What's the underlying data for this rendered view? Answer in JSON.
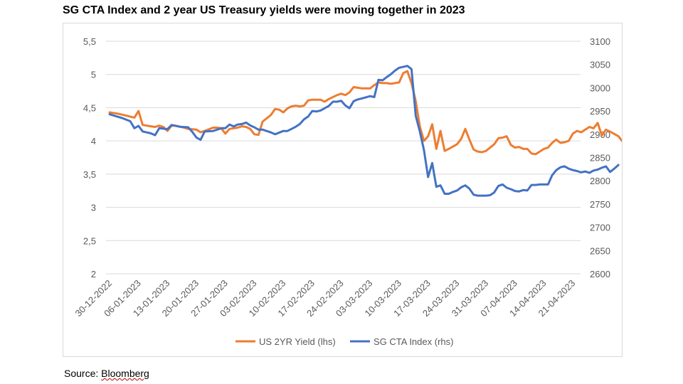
{
  "title": "SG CTA Index and 2 year US Treasury yields were moving together in 2023",
  "source": {
    "prefix": "Source: ",
    "name": "Bloomberg"
  },
  "chart_data": {
    "type": "line",
    "title": "SG CTA Index and 2 year US Treasury yields were moving together in 2023",
    "xlabel": "",
    "ylabel": "",
    "x_tick_labels": [
      "30-12-2022",
      "06-01-2023",
      "13-01-2023",
      "20-01-2023",
      "27-01-2023",
      "03-02-2023",
      "10-02-2023",
      "17-02-2023",
      "24-02-2023",
      "03-03-2023",
      "10-03-2023",
      "17-03-2023",
      "24-03-2023",
      "31-03-2023",
      "07-04-2023",
      "14-04-2023",
      "21-04-2023"
    ],
    "x_range_days": [
      0,
      119
    ],
    "y_left": {
      "ticks": [
        "2",
        "2,5",
        "3",
        "3,5",
        "4",
        "4,5",
        "5",
        "5,5"
      ],
      "range": [
        2,
        5.5
      ]
    },
    "y_right": {
      "ticks": [
        "2600",
        "2650",
        "2700",
        "2750",
        "2800",
        "2850",
        "2900",
        "2950",
        "3000",
        "3050",
        "3100"
      ],
      "range": [
        2600,
        3100
      ]
    },
    "grid": "horizontal",
    "legend_position": "bottom",
    "series": [
      {
        "name": "US 2YR Yield (lhs)",
        "axis": "left",
        "color": "#ed7d31",
        "points": [
          [
            0,
            4.43
          ],
          [
            2,
            4.41
          ],
          [
            4,
            4.38
          ],
          [
            6,
            4.35
          ],
          [
            7,
            4.45
          ],
          [
            8,
            4.24
          ],
          [
            10,
            4.22
          ],
          [
            11,
            4.21
          ],
          [
            12,
            4.23
          ],
          [
            13,
            4.21
          ],
          [
            14,
            4.15
          ],
          [
            15,
            4.23
          ],
          [
            16,
            4.23
          ],
          [
            18,
            4.2
          ],
          [
            19,
            4.18
          ],
          [
            21,
            4.17
          ],
          [
            22,
            4.13
          ],
          [
            23,
            4.15
          ],
          [
            25,
            4.2
          ],
          [
            26,
            4.2
          ],
          [
            27,
            4.19
          ],
          [
            28,
            4.11
          ],
          [
            29,
            4.18
          ],
          [
            31,
            4.2
          ],
          [
            32,
            4.22
          ],
          [
            33,
            4.21
          ],
          [
            34,
            4.18
          ],
          [
            35,
            4.1
          ],
          [
            36,
            4.09
          ],
          [
            37,
            4.29
          ],
          [
            39,
            4.39
          ],
          [
            40,
            4.48
          ],
          [
            41,
            4.47
          ],
          [
            42,
            4.43
          ],
          [
            43,
            4.49
          ],
          [
            44,
            4.52
          ],
          [
            45,
            4.53
          ],
          [
            46,
            4.52
          ],
          [
            47,
            4.53
          ],
          [
            48,
            4.61
          ],
          [
            49,
            4.62
          ],
          [
            51,
            4.62
          ],
          [
            52,
            4.59
          ],
          [
            53,
            4.63
          ],
          [
            55,
            4.69
          ],
          [
            56,
            4.71
          ],
          [
            57,
            4.69
          ],
          [
            58,
            4.73
          ],
          [
            59,
            4.81
          ],
          [
            60,
            4.8
          ],
          [
            61,
            4.79
          ],
          [
            62,
            4.79
          ],
          [
            63,
            4.79
          ],
          [
            64,
            4.84
          ],
          [
            65,
            4.88
          ],
          [
            66,
            4.87
          ],
          [
            67,
            4.87
          ],
          [
            68,
            4.86
          ],
          [
            69,
            4.87
          ],
          [
            70,
            4.88
          ],
          [
            71,
            5.02
          ],
          [
            72,
            5.05
          ],
          [
            73,
            4.87
          ],
          [
            74,
            4.6
          ],
          [
            75,
            4.22
          ],
          [
            76,
            4.0
          ],
          [
            77,
            4.07
          ],
          [
            78,
            4.25
          ],
          [
            79,
            3.88
          ],
          [
            80,
            4.15
          ],
          [
            81,
            3.85
          ],
          [
            82,
            3.88
          ],
          [
            84,
            3.95
          ],
          [
            85,
            4.03
          ],
          [
            86,
            4.18
          ],
          [
            87,
            4.02
          ],
          [
            88,
            3.87
          ],
          [
            89,
            3.84
          ],
          [
            90,
            3.83
          ],
          [
            91,
            3.85
          ],
          [
            93,
            3.95
          ],
          [
            94,
            4.04
          ],
          [
            95,
            4.05
          ],
          [
            96,
            4.07
          ],
          [
            97,
            3.94
          ],
          [
            98,
            3.9
          ],
          [
            99,
            3.91
          ],
          [
            100,
            3.88
          ],
          [
            101,
            3.88
          ],
          [
            102,
            3.81
          ],
          [
            103,
            3.8
          ],
          [
            104,
            3.84
          ],
          [
            105,
            3.88
          ],
          [
            106,
            3.9
          ],
          [
            107,
            3.97
          ],
          [
            108,
            4.02
          ],
          [
            109,
            3.97
          ],
          [
            110,
            3.98
          ],
          [
            111,
            4.0
          ],
          [
            112,
            4.11
          ],
          [
            113,
            4.15
          ],
          [
            114,
            4.13
          ],
          [
            115,
            4.17
          ],
          [
            116,
            4.21
          ],
          [
            117,
            4.19
          ],
          [
            118,
            4.27
          ],
          [
            119,
            4.08
          ],
          [
            120,
            4.17
          ],
          [
            121,
            4.14
          ],
          [
            123,
            4.07
          ],
          [
            124,
            3.99
          ],
          [
            125,
            3.94
          ],
          [
            126,
            3.97
          ],
          [
            127,
            4.05
          ]
        ]
      },
      {
        "name": "SG CTA Index (rhs)",
        "axis": "right",
        "color": "#4472c4",
        "points": [
          [
            0,
            2943
          ],
          [
            3,
            2935
          ],
          [
            5,
            2928
          ],
          [
            6,
            2913
          ],
          [
            7,
            2918
          ],
          [
            8,
            2906
          ],
          [
            9,
            2904
          ],
          [
            10,
            2902
          ],
          [
            11,
            2898
          ],
          [
            12,
            2913
          ],
          [
            14,
            2911
          ],
          [
            15,
            2920
          ],
          [
            17,
            2916
          ],
          [
            19,
            2915
          ],
          [
            20,
            2905
          ],
          [
            21,
            2893
          ],
          [
            22,
            2888
          ],
          [
            23,
            2906
          ],
          [
            25,
            2907
          ],
          [
            26,
            2910
          ],
          [
            27,
            2913
          ],
          [
            28,
            2913
          ],
          [
            29,
            2921
          ],
          [
            30,
            2917
          ],
          [
            31,
            2921
          ],
          [
            32,
            2922
          ],
          [
            33,
            2925
          ],
          [
            34,
            2919
          ],
          [
            35,
            2915
          ],
          [
            36,
            2910
          ],
          [
            37,
            2910
          ],
          [
            39,
            2904
          ],
          [
            40,
            2900
          ],
          [
            42,
            2907
          ],
          [
            43,
            2907
          ],
          [
            45,
            2916
          ],
          [
            46,
            2922
          ],
          [
            47,
            2932
          ],
          [
            48,
            2938
          ],
          [
            49,
            2950
          ],
          [
            50,
            2949
          ],
          [
            51,
            2951
          ],
          [
            53,
            2961
          ],
          [
            54,
            2970
          ],
          [
            55,
            2970
          ],
          [
            56,
            2972
          ],
          [
            57,
            2962
          ],
          [
            58,
            2956
          ],
          [
            59,
            2971
          ],
          [
            60,
            2975
          ],
          [
            61,
            2977
          ],
          [
            63,
            2982
          ],
          [
            64,
            2980
          ],
          [
            65,
            3017
          ],
          [
            66,
            3016
          ],
          [
            67,
            3023
          ],
          [
            68,
            3029
          ],
          [
            69,
            3037
          ],
          [
            70,
            3043
          ],
          [
            72,
            3047
          ],
          [
            73,
            3040
          ],
          [
            74,
            2940
          ],
          [
            75,
            2906
          ],
          [
            76,
            2866
          ],
          [
            77,
            2808
          ],
          [
            78,
            2838
          ],
          [
            79,
            2787
          ],
          [
            80,
            2790
          ],
          [
            81,
            2772
          ],
          [
            82,
            2772
          ],
          [
            83,
            2776
          ],
          [
            84,
            2779
          ],
          [
            85,
            2786
          ],
          [
            86,
            2790
          ],
          [
            87,
            2783
          ],
          [
            88,
            2770
          ],
          [
            89,
            2768
          ],
          [
            90,
            2768
          ],
          [
            91,
            2768
          ],
          [
            92,
            2769
          ],
          [
            93,
            2775
          ],
          [
            94,
            2789
          ],
          [
            95,
            2792
          ],
          [
            96,
            2785
          ],
          [
            97,
            2782
          ],
          [
            98,
            2778
          ],
          [
            99,
            2777
          ],
          [
            100,
            2780
          ],
          [
            101,
            2779
          ],
          [
            102,
            2791
          ],
          [
            103,
            2791
          ],
          [
            104,
            2792
          ],
          [
            105,
            2792
          ],
          [
            106,
            2792
          ],
          [
            107,
            2812
          ],
          [
            108,
            2823
          ],
          [
            109,
            2829
          ],
          [
            110,
            2831
          ],
          [
            111,
            2826
          ],
          [
            112,
            2823
          ],
          [
            113,
            2821
          ],
          [
            114,
            2818
          ],
          [
            115,
            2820
          ],
          [
            116,
            2817
          ],
          [
            117,
            2822
          ],
          [
            118,
            2824
          ],
          [
            119,
            2828
          ],
          [
            120,
            2831
          ],
          [
            121,
            2819
          ],
          [
            122,
            2826
          ],
          [
            123,
            2834
          ]
        ]
      }
    ]
  }
}
